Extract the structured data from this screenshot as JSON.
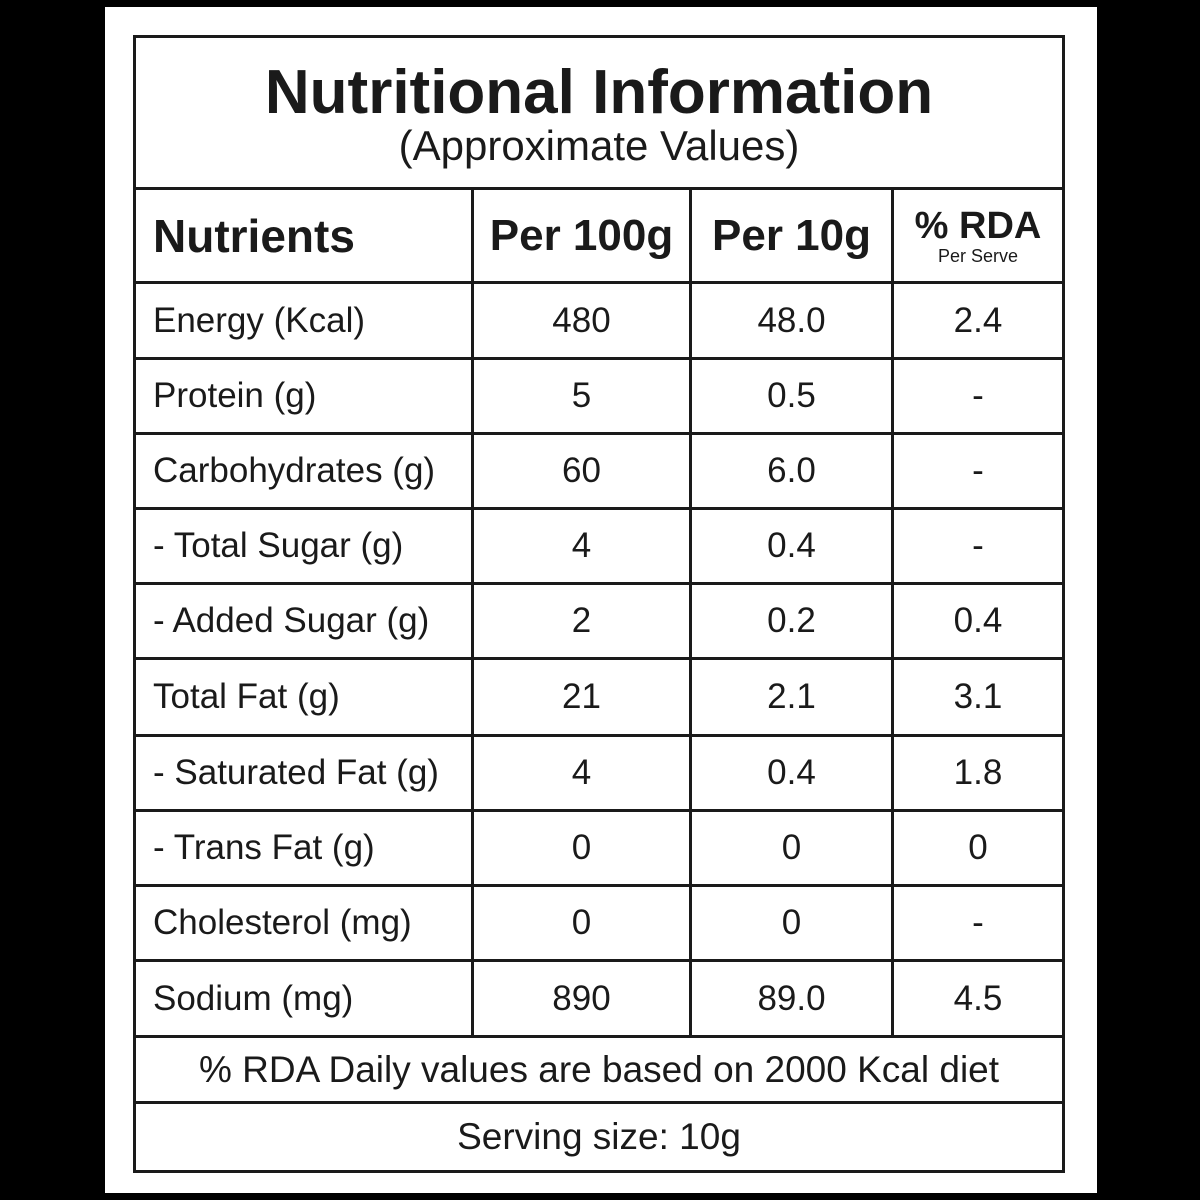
{
  "title": "Nutritional Information",
  "subtitle": "(Approximate Values)",
  "columns": {
    "nutrients": "Nutrients",
    "per100": "Per 100g",
    "per10": "Per 10g",
    "rda": "% RDA",
    "rda_sub": "Per Serve"
  },
  "rows": [
    {
      "name": "Energy (Kcal)",
      "per100": "480",
      "per10": "48.0",
      "rda": "2.4"
    },
    {
      "name": "Protein (g)",
      "per100": "5",
      "per10": "0.5",
      "rda": "-"
    },
    {
      "name": "Carbohydrates (g)",
      "per100": "60",
      "per10": "6.0",
      "rda": "-"
    },
    {
      "name": "- Total Sugar (g)",
      "per100": "4",
      "per10": "0.4",
      "rda": "-"
    },
    {
      "name": "- Added Sugar (g)",
      "per100": "2",
      "per10": "0.2",
      "rda": "0.4"
    },
    {
      "name": "Total Fat (g)",
      "per100": "21",
      "per10": "2.1",
      "rda": "3.1"
    },
    {
      "name": "- Saturated Fat (g)",
      "per100": "4",
      "per10": "0.4",
      "rda": "1.8"
    },
    {
      "name": "- Trans Fat (g)",
      "per100": "0",
      "per10": "0",
      "rda": "0"
    },
    {
      "name": "Cholesterol (mg)",
      "per100": "0",
      "per10": "0",
      "rda": "-"
    },
    {
      "name": "Sodium (mg)",
      "per100": "890",
      "per10": "89.0",
      "rda": "4.5"
    }
  ],
  "footer": {
    "note": "% RDA Daily values are based on 2000 Kcal diet",
    "serving": "Serving size: 10g"
  }
}
